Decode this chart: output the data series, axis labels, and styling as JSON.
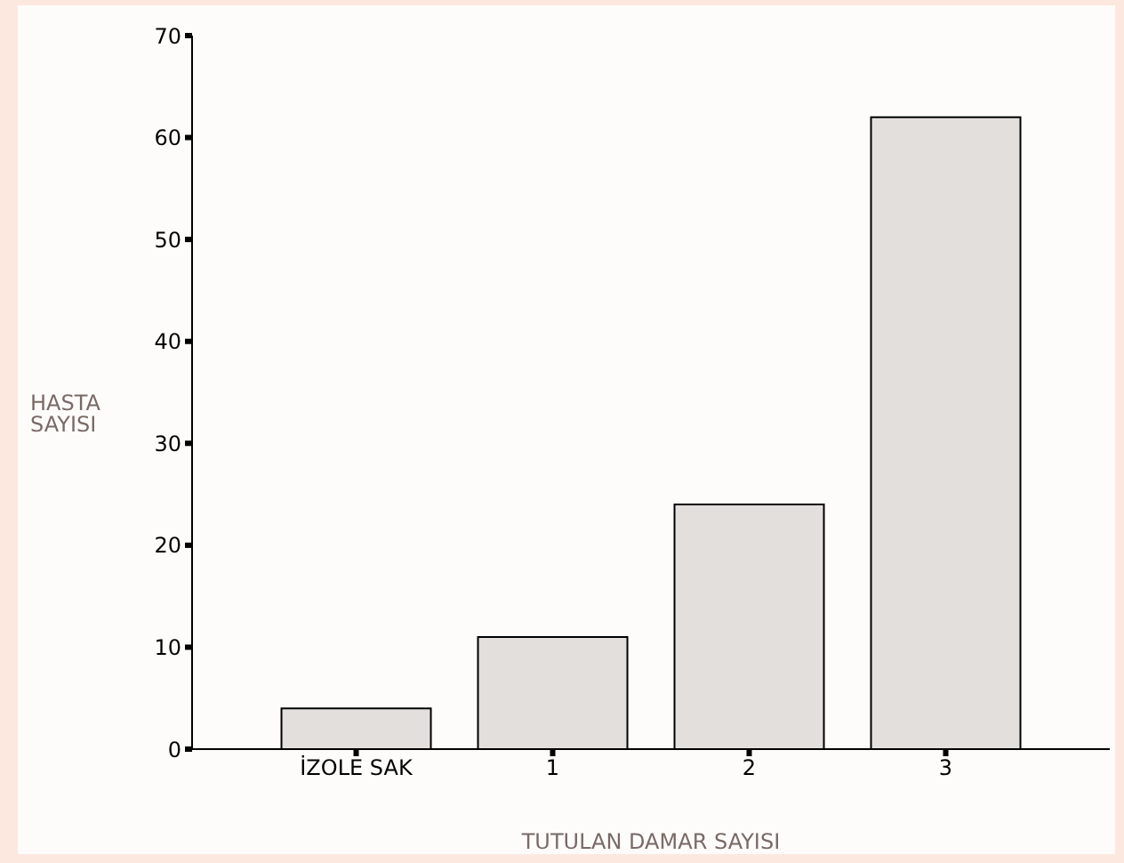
{
  "chart_data": {
    "type": "bar",
    "xlabel": "TUTULAN DAMAR SAYISI",
    "ylabel": "HASTA SAYISI",
    "categories": [
      "İZOLE SAK",
      "1",
      "2",
      "3"
    ],
    "values": [
      4,
      11,
      24,
      62
    ],
    "color": "#e3dfdd",
    "ylim": [
      0,
      70
    ],
    "yticks": [
      0,
      10,
      20,
      30,
      40,
      50,
      60,
      70
    ],
    "grid": false,
    "legend": false
  }
}
